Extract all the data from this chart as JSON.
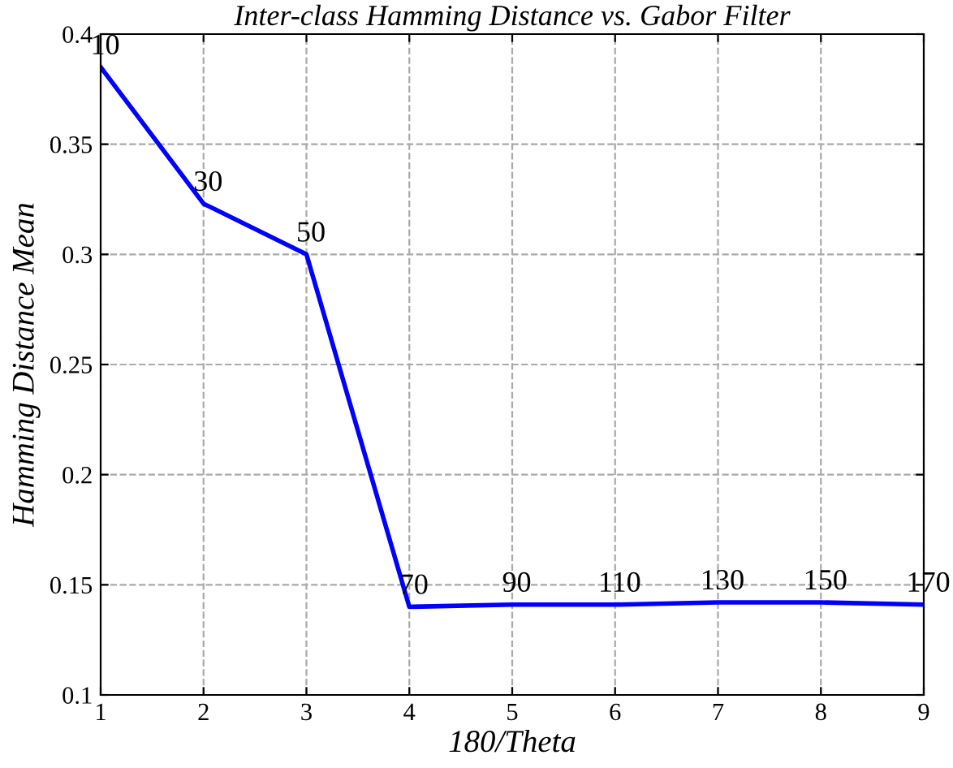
{
  "chart_data": {
    "type": "line",
    "title": "Inter-class Hamming Distance vs. Gabor Filter",
    "xlabel": "180/Theta",
    "ylabel": "Hamming Distance Mean",
    "x": [
      1,
      2,
      3,
      4,
      5,
      6,
      7,
      8,
      9
    ],
    "series": [
      {
        "color": "#0000ff",
        "values": [
          0.385,
          0.323,
          0.3,
          0.14,
          0.141,
          0.141,
          0.142,
          0.142,
          0.141
        ]
      }
    ],
    "annotations": [
      {
        "text": "10",
        "x": 1,
        "y": 0.385
      },
      {
        "text": "30",
        "x": 2,
        "y": 0.323
      },
      {
        "text": "50",
        "x": 3,
        "y": 0.3
      },
      {
        "text": "70",
        "x": 4,
        "y": 0.14
      },
      {
        "text": "90",
        "x": 5,
        "y": 0.141
      },
      {
        "text": "110",
        "x": 6,
        "y": 0.141
      },
      {
        "text": "130",
        "x": 7,
        "y": 0.142
      },
      {
        "text": "150",
        "x": 8,
        "y": 0.142
      },
      {
        "text": "170",
        "x": 9,
        "y": 0.141
      }
    ],
    "xlim": [
      1,
      9
    ],
    "ylim": [
      0.1,
      0.4
    ],
    "xticks": [
      1,
      2,
      3,
      4,
      5,
      6,
      7,
      8,
      9
    ],
    "yticks": [
      0.1,
      0.15,
      0.2,
      0.25,
      0.3,
      0.35,
      0.4
    ],
    "grid": true,
    "line_style": "solid",
    "marker": "none"
  }
}
